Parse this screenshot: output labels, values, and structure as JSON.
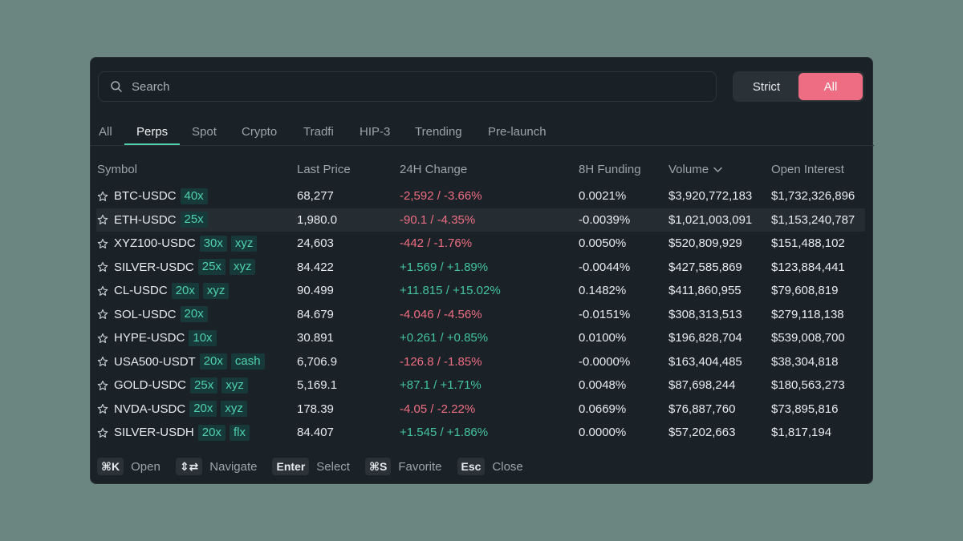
{
  "search": {
    "placeholder": "Search",
    "icon": "search-icon"
  },
  "mode": {
    "options": [
      "Strict",
      "All"
    ],
    "selected": "All"
  },
  "tabs": [
    "All",
    "Perps",
    "Spot",
    "Crypto",
    "Tradfi",
    "HIP-3",
    "Trending",
    "Pre-launch"
  ],
  "active_tab": "Perps",
  "columns": {
    "symbol": "Symbol",
    "price": "Last Price",
    "change": "24H Change",
    "funding": "8H Funding",
    "volume": "Volume",
    "oi": "Open Interest"
  },
  "sort": {
    "column": "Volume",
    "direction": "descending",
    "icon": "chevron-down-icon"
  },
  "rows": [
    {
      "symbol": "BTC-USDC",
      "leverage": "40x",
      "tag": "",
      "price": "68,277",
      "change": "-2,592 / -3.66%",
      "dir": "neg",
      "funding": "0.0021%",
      "volume": "$3,920,772,183",
      "oi": "$1,732,326,896"
    },
    {
      "symbol": "ETH-USDC",
      "leverage": "25x",
      "tag": "",
      "price": "1,980.0",
      "change": "-90.1 / -4.35%",
      "dir": "neg",
      "funding": "-0.0039%",
      "volume": "$1,021,003,091",
      "oi": "$1,153,240,787"
    },
    {
      "symbol": "XYZ100-USDC",
      "leverage": "30x",
      "tag": "xyz",
      "price": "24,603",
      "change": "-442 / -1.76%",
      "dir": "neg",
      "funding": "0.0050%",
      "volume": "$520,809,929",
      "oi": "$151,488,102"
    },
    {
      "symbol": "SILVER-USDC",
      "leverage": "25x",
      "tag": "xyz",
      "price": "84.422",
      "change": "+1.569 / +1.89%",
      "dir": "pos",
      "funding": "-0.0044%",
      "volume": "$427,585,869",
      "oi": "$123,884,441"
    },
    {
      "symbol": "CL-USDC",
      "leverage": "20x",
      "tag": "xyz",
      "price": "90.499",
      "change": "+11.815 / +15.02%",
      "dir": "pos",
      "funding": "0.1482%",
      "volume": "$411,860,955",
      "oi": "$79,608,819"
    },
    {
      "symbol": "SOL-USDC",
      "leverage": "20x",
      "tag": "",
      "price": "84.679",
      "change": "-4.046 / -4.56%",
      "dir": "neg",
      "funding": "-0.0151%",
      "volume": "$308,313,513",
      "oi": "$279,118,138"
    },
    {
      "symbol": "HYPE-USDC",
      "leverage": "10x",
      "tag": "",
      "price": "30.891",
      "change": "+0.261 / +0.85%",
      "dir": "pos",
      "funding": "0.0100%",
      "volume": "$196,828,704",
      "oi": "$539,008,700"
    },
    {
      "symbol": "USA500-USDT",
      "leverage": "20x",
      "tag": "cash",
      "price": "6,706.9",
      "change": "-126.8 / -1.85%",
      "dir": "neg",
      "funding": "-0.0000%",
      "volume": "$163,404,485",
      "oi": "$38,304,818"
    },
    {
      "symbol": "GOLD-USDC",
      "leverage": "25x",
      "tag": "xyz",
      "price": "5,169.1",
      "change": "+87.1 / +1.71%",
      "dir": "pos",
      "funding": "0.0048%",
      "volume": "$87,698,244",
      "oi": "$180,563,273"
    },
    {
      "symbol": "NVDA-USDC",
      "leverage": "20x",
      "tag": "xyz",
      "price": "178.39",
      "change": "-4.05 / -2.22%",
      "dir": "neg",
      "funding": "0.0669%",
      "volume": "$76,887,760",
      "oi": "$73,895,816"
    },
    {
      "symbol": "SILVER-USDH",
      "leverage": "20x",
      "tag": "flx",
      "price": "84.407",
      "change": "+1.545 / +1.86%",
      "dir": "pos",
      "funding": "0.0000%",
      "volume": "$57,202,663",
      "oi": "$1,817,194"
    }
  ],
  "highlighted_row": "ETH-USDC",
  "footer": [
    {
      "key": "⌘K",
      "label": "Open"
    },
    {
      "key": "⇕⇄",
      "label": "Navigate"
    },
    {
      "key": "Enter",
      "label": "Select"
    },
    {
      "key": "⌘S",
      "label": "Favorite"
    },
    {
      "key": "Esc",
      "label": "Close"
    }
  ],
  "colors": {
    "accent": "#4fd1ae",
    "positive": "#43c49d",
    "negative": "#ef6d83",
    "panel": "#1b2227",
    "backdrop": "#6b8580"
  }
}
